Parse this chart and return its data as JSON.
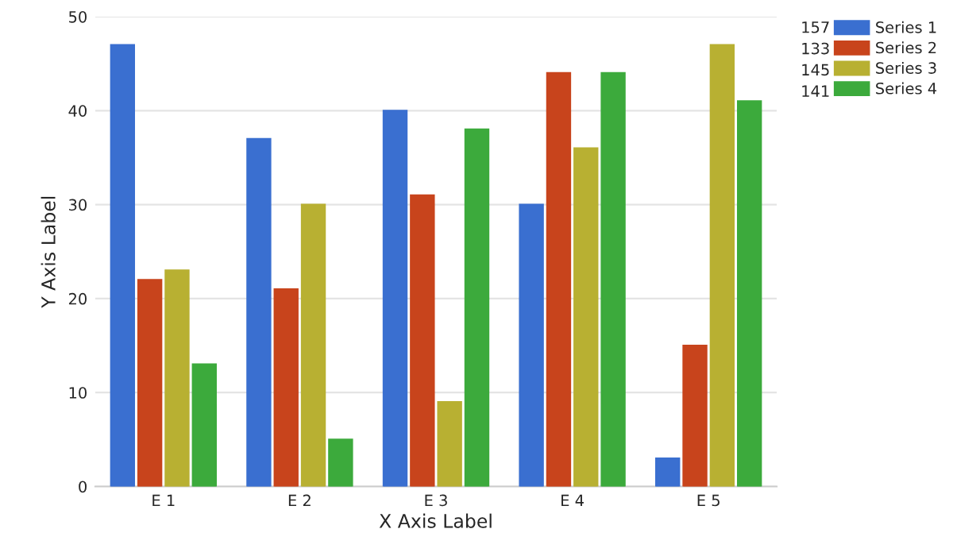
{
  "chart_data": {
    "type": "bar",
    "xlabel": "X Axis Label",
    "ylabel": "Y Axis Label",
    "categories": [
      "E 1",
      "E 2",
      "E 3",
      "E 4",
      "E 5"
    ],
    "series": [
      {
        "name": "Series 1",
        "color": "#3a6fd0",
        "values": [
          47,
          37,
          40,
          30,
          3
        ]
      },
      {
        "name": "Series 2",
        "color": "#c8441c",
        "values": [
          22,
          21,
          31,
          44,
          15
        ]
      },
      {
        "name": "Series 3",
        "color": "#b8b032",
        "values": [
          23,
          30,
          9,
          36,
          47
        ]
      },
      {
        "name": "Series 4",
        "color": "#3caa3c",
        "values": [
          13,
          5,
          38,
          44,
          41
        ]
      }
    ],
    "annotations": [
      "157",
      "133",
      "145",
      "141"
    ],
    "ylim": [
      0,
      50
    ],
    "yticks": [
      0,
      10,
      20,
      30,
      40,
      50
    ],
    "grid": "y",
    "legend": "top right"
  }
}
